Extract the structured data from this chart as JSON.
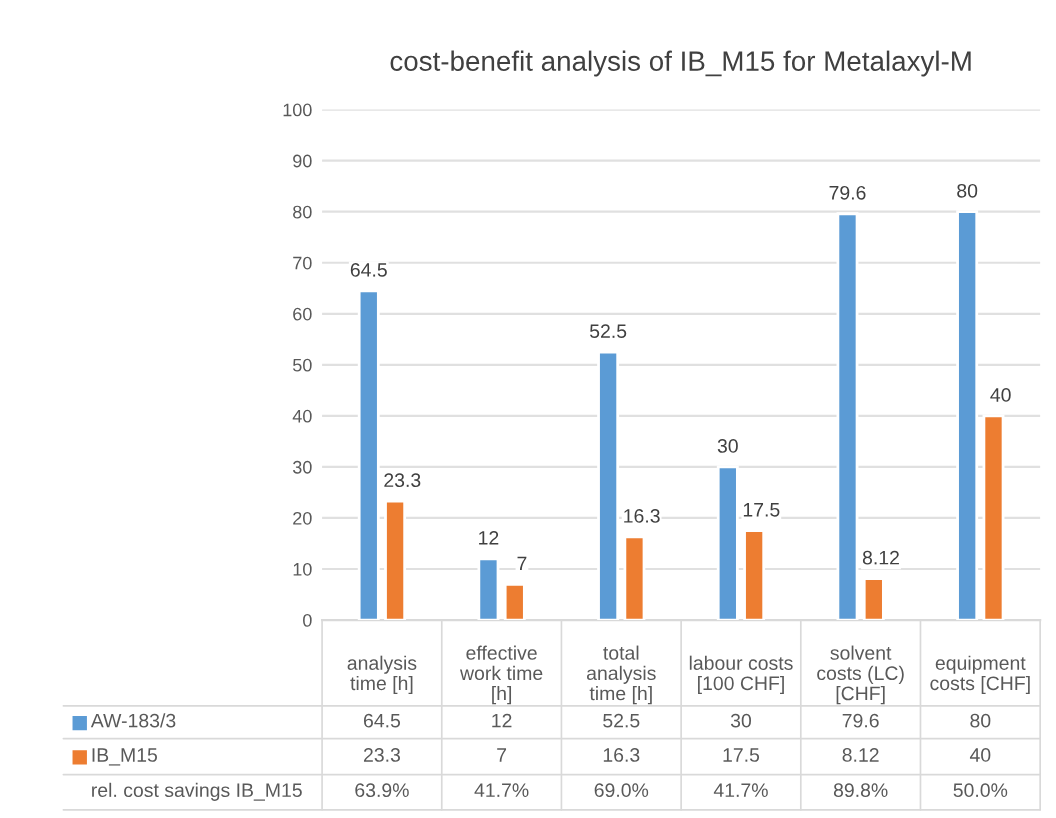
{
  "chart_data": {
    "type": "bar",
    "title": "cost-benefit analysis of IB_M15 for Metalaxyl-M",
    "categories": [
      "analysis\ntime [h]",
      "effective\nwork time\n[h]",
      "total\nanalysis\ntime [h]",
      "labour costs\n[100 CHF]",
      "solvent\ncosts (LC)\n[CHF]",
      "equipment\ncosts [CHF]"
    ],
    "series": [
      {
        "name": "AW-183/3",
        "color": "#5b9bd5",
        "values": [
          64.5,
          12,
          52.5,
          30,
          79.6,
          80
        ]
      },
      {
        "name": "IB_M15",
        "color": "#ed7d31",
        "values": [
          23.3,
          7,
          16.3,
          17.5,
          8.12,
          40
        ]
      }
    ],
    "annotations": [
      "64.5",
      "12",
      "52.5",
      "30",
      "79.6",
      "80",
      "23.3",
      "7",
      "16.3",
      "17.5",
      "8.12",
      "40",
      "rel. cost savings IB_M15",
      "63.9%",
      "41.7%",
      "69.0%",
      "41.7%",
      "89.8%",
      "50.0%"
    ],
    "ylim": [
      0,
      100
    ],
    "yticks": [
      0,
      10,
      20,
      30,
      40,
      50,
      60,
      70,
      80,
      90,
      100
    ],
    "grid": "y",
    "data_labels": true,
    "legend": "bottom"
  }
}
